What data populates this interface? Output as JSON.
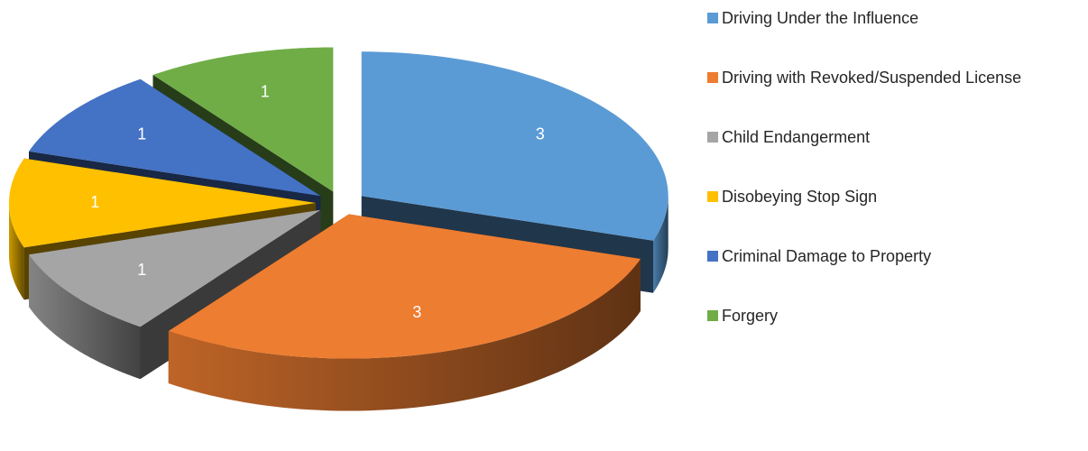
{
  "chart_data": {
    "type": "pie",
    "pie_3d": true,
    "exploded": true,
    "categories": [
      "Driving Under the Influence",
      "Driving with Revoked/Suspended License",
      "Child Endangerment",
      "Disobeying Stop Sign",
      "Criminal Damage to Property",
      "Forgery"
    ],
    "values": [
      3,
      3,
      1,
      1,
      1,
      1
    ],
    "colors": [
      "#5b9bd5",
      "#ed7d31",
      "#a5a5a5",
      "#ffc000",
      "#4472c4",
      "#70ad47"
    ],
    "legend": "right"
  }
}
